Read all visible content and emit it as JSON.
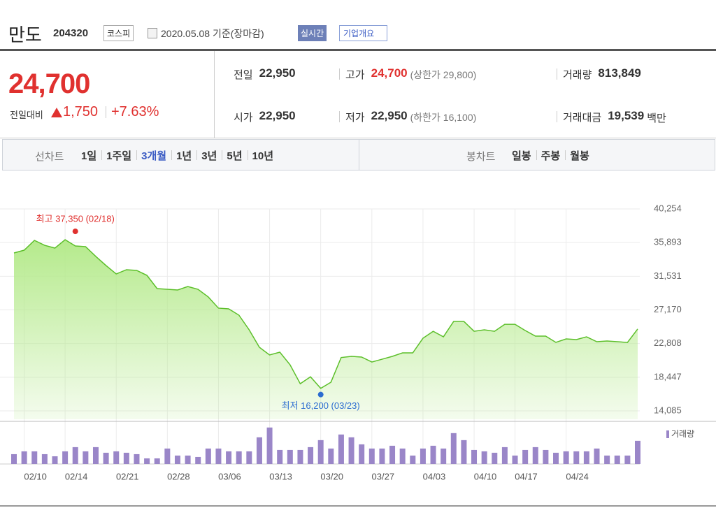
{
  "header": {
    "name": "만도",
    "code": "204320",
    "market": "코스피",
    "date": "2020.05.08 기준(장마감)",
    "realtime": "실시간",
    "company_info": "기업개요"
  },
  "quote": {
    "price": "24,700",
    "change_label": "전일대비",
    "change": "1,750",
    "change_rate": "+7.63%",
    "color": "#e0312f"
  },
  "stats": [
    [
      {
        "label": "전일",
        "value": "22,950"
      },
      {
        "label": "고가",
        "value": "24,700",
        "note": "(상한가 29,800)",
        "color": "#e0312f"
      },
      {
        "label": "거래량",
        "value": "813,849"
      }
    ],
    [
      {
        "label": "시가",
        "value": "22,950"
      },
      {
        "label": "저가",
        "value": "22,950",
        "note": "(하한가 16,100)"
      },
      {
        "label": "거래대금",
        "value": "19,539",
        "unit": "백만"
      }
    ]
  ],
  "tabs": {
    "line_label": "선차트",
    "periods": [
      "1일",
      "1주일",
      "3개월",
      "1년",
      "3년",
      "5년",
      "10년"
    ],
    "selected": 2,
    "candle_label": "봉차트",
    "candles": [
      "일봉",
      "주봉",
      "월봉"
    ]
  },
  "chart_data": [
    {
      "type": "area",
      "color": "#5cbf2a",
      "fill": "#b5ea8c",
      "grid": true,
      "categories": [
        null,
        "02/10",
        null,
        null,
        null,
        "02/14",
        null,
        null,
        null,
        null,
        "02/21",
        null,
        null,
        null,
        null,
        "02/28",
        null,
        null,
        null,
        null,
        "03/06",
        null,
        null,
        null,
        null,
        "03/13",
        null,
        null,
        null,
        null,
        "03/20",
        null,
        null,
        null,
        null,
        "03/27",
        null,
        null,
        null,
        null,
        "04/03",
        null,
        null,
        null,
        null,
        "04/10",
        null,
        null,
        null,
        "04/17",
        null,
        null,
        null,
        null,
        "04/24",
        null,
        null,
        null,
        null,
        null,
        null,
        null
      ],
      "values": [
        34550,
        34910,
        36180,
        35540,
        35180,
        36270,
        35450,
        35370,
        34100,
        32920,
        31830,
        32380,
        32290,
        31650,
        29930,
        29840,
        29750,
        30200,
        29840,
        28850,
        27400,
        27310,
        26490,
        24590,
        22330,
        21330,
        21690,
        20060,
        17600,
        18500,
        17000,
        17800,
        21000,
        21150,
        21060,
        20420,
        20780,
        21150,
        21600,
        21600,
        23500,
        24400,
        23680,
        25680,
        25680,
        24400,
        24590,
        24400,
        25300,
        25300,
        24500,
        23770,
        23770,
        22960,
        23410,
        23320,
        23680,
        23050,
        23140,
        23050,
        22950,
        24700
      ],
      "ylim": [
        14085,
        40254
      ],
      "yticks": [
        {
          "value": 14085,
          "label": "14,085"
        },
        {
          "value": 18447,
          "label": "18,447"
        },
        {
          "value": 22808,
          "label": "22,808"
        },
        {
          "value": 27170,
          "label": "27,170"
        },
        {
          "value": 31531,
          "label": "31,531"
        },
        {
          "value": 35893,
          "label": "35,893"
        },
        {
          "value": 40254,
          "label": "40,254"
        }
      ],
      "annotations": [
        {
          "text": "최고 37,350 (02/18)",
          "value": 37350,
          "x": 6,
          "color": "#e0312f"
        },
        {
          "text": "최저 16,200 (03/23)",
          "value": 16200,
          "x": 30,
          "color": "#2b6cd0"
        }
      ]
    },
    {
      "type": "bar",
      "name": "거래량",
      "color": "#9a86c8",
      "ylim": [
        0,
        1400000
      ],
      "values": [
        345000,
        444000,
        444000,
        345000,
        271000,
        444000,
        592000,
        444000,
        592000,
        395000,
        444000,
        395000,
        345000,
        197000,
        197000,
        543000,
        296000,
        296000,
        247000,
        543000,
        543000,
        444000,
        444000,
        444000,
        937000,
        1282000,
        493000,
        493000,
        493000,
        592000,
        838000,
        543000,
        1036000,
        937000,
        690000,
        543000,
        543000,
        641000,
        543000,
        296000,
        543000,
        641000,
        543000,
        1085000,
        838000,
        493000,
        444000,
        395000,
        592000,
        296000,
        493000,
        592000,
        493000,
        395000,
        444000,
        444000,
        444000,
        543000,
        296000,
        296000,
        296000,
        813849
      ]
    }
  ]
}
